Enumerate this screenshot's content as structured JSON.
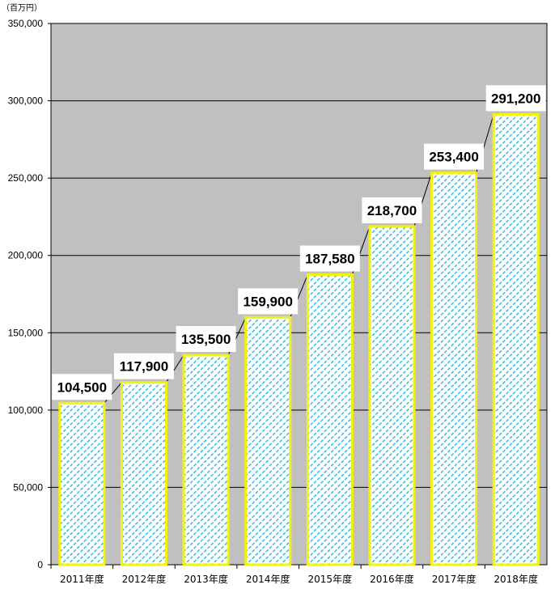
{
  "chart_data": {
    "type": "bar",
    "unit_label": "（百万円）",
    "categories": [
      "2011年度",
      "2012年度",
      "2013年度",
      "2014年度",
      "2015年度",
      "2016年度",
      "2017年度",
      "2018年度"
    ],
    "values": [
      104500,
      117900,
      135500,
      159900,
      187580,
      218700,
      253400,
      291200
    ],
    "data_labels": [
      "104,500",
      "117,900",
      "135,500",
      "159,900",
      "187,580",
      "218,700",
      "253,400",
      "291,200"
    ],
    "ylim": [
      0,
      350000
    ],
    "yticks": [
      0,
      50000,
      100000,
      150000,
      200000,
      250000,
      300000,
      350000
    ],
    "ytick_labels": [
      "0",
      "50,000",
      "100,000",
      "150,000",
      "200,000",
      "250,000",
      "300,000",
      "350,000"
    ],
    "grid": true,
    "colors": {
      "plot_background": "#c0c0c0",
      "bar_fill": "#ffffff",
      "bar_hatch": "#33bbe8",
      "bar_border": "#f4f40a",
      "grid": "#000000",
      "series_lines": "#000000"
    }
  }
}
